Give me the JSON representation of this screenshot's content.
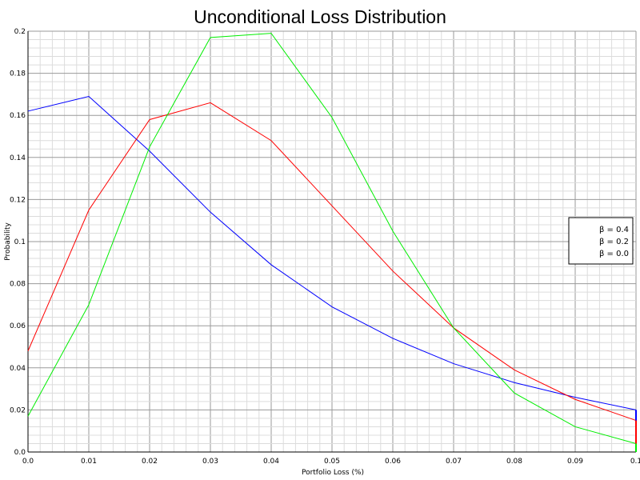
{
  "chart_data": {
    "type": "line",
    "title": "Unconditional Loss Distribution",
    "xlabel": "Portfolio Loss (%)",
    "ylabel": "Probability",
    "xlim": [
      0,
      0.1
    ],
    "ylim": [
      0,
      0.2
    ],
    "x": [
      0,
      0.01,
      0.02,
      0.03,
      0.04,
      0.05,
      0.06,
      0.07,
      0.08,
      0.09,
      0.1
    ],
    "x_tick_labels": [
      "0.0",
      "0.01",
      "0.02",
      "0.03",
      "0.04",
      "0.05",
      "0.06",
      "0.07",
      "0.08",
      "0.09",
      "0.1"
    ],
    "y_tick_labels": [
      "0.0",
      "0.02",
      "0.04",
      "0.06",
      "0.08",
      "0.1",
      "0.12",
      "0.14",
      "0.16",
      "0.18",
      "0.2"
    ],
    "grid": true,
    "legend_position": "right",
    "series": [
      {
        "name": "β = 0.4",
        "color": "#0000ff",
        "values": [
          0.162,
          0.169,
          0.143,
          0.114,
          0.089,
          0.069,
          0.054,
          0.042,
          0.033,
          0.026,
          0.02
        ]
      },
      {
        "name": "β = 0.2",
        "color": "#ff0000",
        "values": [
          0.048,
          0.115,
          0.158,
          0.166,
          0.148,
          0.117,
          0.086,
          0.059,
          0.039,
          0.025,
          0.015
        ]
      },
      {
        "name": "β = 0.0",
        "color": "#00ee00",
        "values": [
          0.017,
          0.07,
          0.145,
          0.197,
          0.199,
          0.159,
          0.105,
          0.059,
          0.028,
          0.012,
          0.004
        ]
      }
    ]
  }
}
